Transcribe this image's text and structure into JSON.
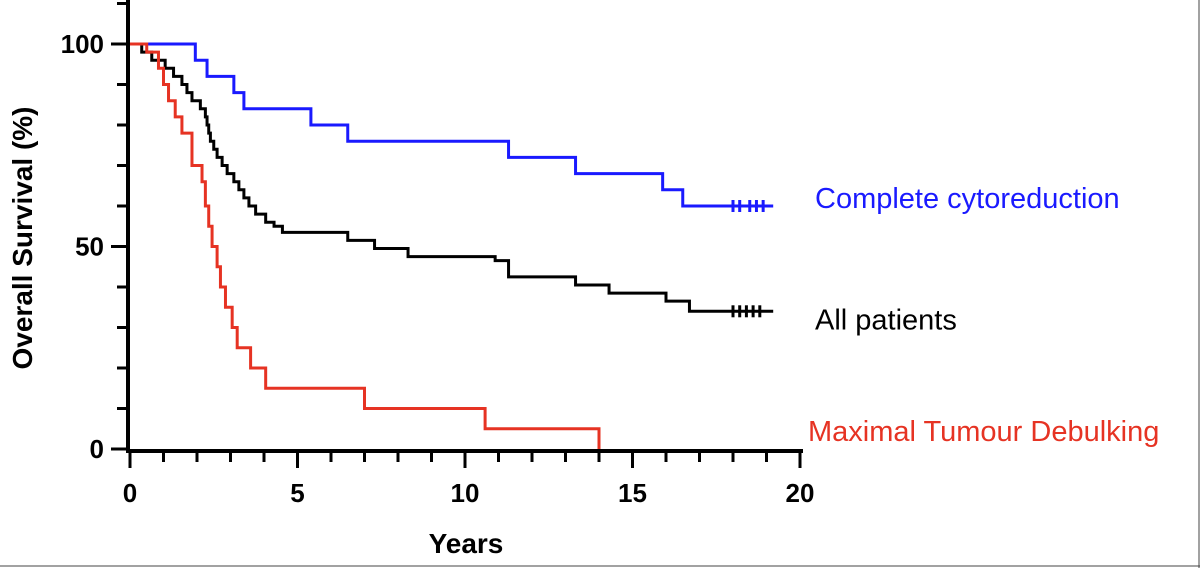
{
  "chart_data": {
    "type": "line",
    "subtype": "kaplan-meier step",
    "title": "",
    "xlabel": "Years",
    "ylabel": "Overall Survival (%)",
    "xlim": [
      0,
      20
    ],
    "ylim": [
      0,
      100
    ],
    "xticks": [
      0,
      5,
      10,
      15,
      20
    ],
    "yticks": [
      0,
      50,
      100
    ],
    "grid": false,
    "legend_position": "right (inline labels at line ends)",
    "series": [
      {
        "name": "Complete cytoreduction",
        "color": "#1a1aff",
        "steps": [
          [
            0,
            100
          ],
          [
            1.95,
            96
          ],
          [
            2.3,
            92
          ],
          [
            3.1,
            88
          ],
          [
            3.4,
            84
          ],
          [
            5.4,
            80
          ],
          [
            6.5,
            76
          ],
          [
            11.3,
            72
          ],
          [
            13.3,
            68
          ],
          [
            15.9,
            64
          ],
          [
            16.5,
            60
          ],
          [
            19.2,
            60
          ]
        ],
        "censored": [
          18.0,
          18.2,
          18.5,
          18.7,
          18.9
        ],
        "label_y": 62
      },
      {
        "name": "All patients",
        "color": "#000000",
        "steps": [
          [
            0,
            100
          ],
          [
            0.35,
            98
          ],
          [
            0.65,
            96
          ],
          [
            1.05,
            94
          ],
          [
            1.3,
            92
          ],
          [
            1.55,
            90
          ],
          [
            1.7,
            88
          ],
          [
            1.85,
            86
          ],
          [
            2.1,
            84
          ],
          [
            2.25,
            82
          ],
          [
            2.3,
            80
          ],
          [
            2.35,
            78
          ],
          [
            2.4,
            76
          ],
          [
            2.5,
            74
          ],
          [
            2.6,
            72
          ],
          [
            2.75,
            70
          ],
          [
            2.9,
            68
          ],
          [
            3.1,
            66
          ],
          [
            3.25,
            64
          ],
          [
            3.4,
            62
          ],
          [
            3.55,
            60
          ],
          [
            3.75,
            58
          ],
          [
            4.05,
            56
          ],
          [
            4.3,
            55
          ],
          [
            4.55,
            53.5
          ],
          [
            6.5,
            51.5
          ],
          [
            7.3,
            49.5
          ],
          [
            8.3,
            47.5
          ],
          [
            10.9,
            46.5
          ],
          [
            11.3,
            42.5
          ],
          [
            13.3,
            40.5
          ],
          [
            14.3,
            38.5
          ],
          [
            16.0,
            36.5
          ],
          [
            16.7,
            34
          ],
          [
            19.2,
            34
          ]
        ],
        "censored": [
          18.0,
          18.2,
          18.4,
          18.6,
          18.8
        ],
        "label_y": 32
      },
      {
        "name": "Maximal Tumour Debulking",
        "color": "#e63323",
        "steps": [
          [
            0,
            100
          ],
          [
            0.5,
            98
          ],
          [
            0.85,
            94
          ],
          [
            1.0,
            90
          ],
          [
            1.15,
            86
          ],
          [
            1.35,
            82
          ],
          [
            1.55,
            78
          ],
          [
            1.85,
            70
          ],
          [
            2.15,
            66
          ],
          [
            2.25,
            60
          ],
          [
            2.35,
            55
          ],
          [
            2.45,
            50
          ],
          [
            2.6,
            45
          ],
          [
            2.7,
            40
          ],
          [
            2.85,
            35
          ],
          [
            3.05,
            30
          ],
          [
            3.2,
            25
          ],
          [
            3.6,
            20
          ],
          [
            4.05,
            15
          ],
          [
            7.0,
            10
          ],
          [
            10.6,
            5
          ],
          [
            14.0,
            0
          ]
        ],
        "censored": [],
        "label_y": 4.5
      }
    ]
  }
}
